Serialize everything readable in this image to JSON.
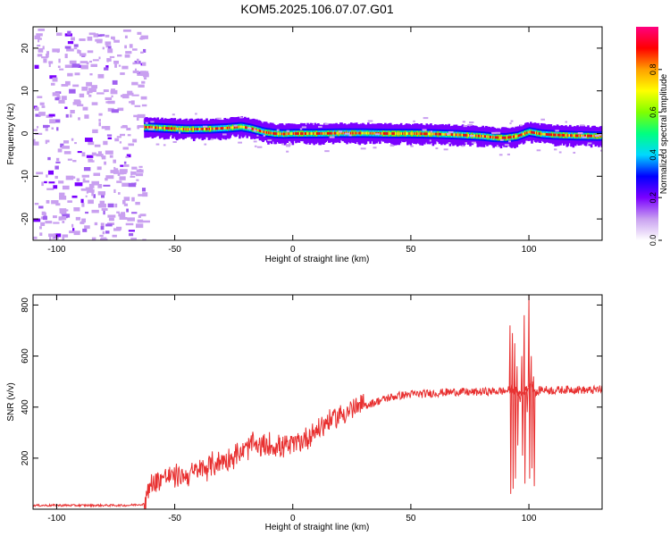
{
  "figure_title": "KOM5.2025.106.07.07.G01",
  "chart_data": [
    {
      "type": "heatmap",
      "xlabel": "Height of straight line (km)",
      "ylabel": "Frequency (Hz)",
      "xlim": [
        -110,
        131
      ],
      "ylim": [
        -25,
        25
      ],
      "x_ticks": [
        -100,
        -50,
        0,
        50,
        100
      ],
      "y_ticks": [
        -20,
        -10,
        0,
        10,
        20
      ],
      "colorbar": {
        "label": "Normalized spectral amplitude",
        "range": [
          0,
          1
        ],
        "ticks": [
          "0.0",
          "0.2",
          "0.4",
          "0.6",
          "0.8"
        ],
        "colors": [
          "#ffffff",
          "#c9a0f0",
          "#7a00ff",
          "#0000ff",
          "#00d8ff",
          "#00ff80",
          "#80ff00",
          "#ffff00",
          "#ffa000",
          "#ff0000",
          "#ff0080"
        ]
      },
      "noise_region_x": [
        -110,
        -63
      ],
      "signal_center_trace": {
        "x": [
          -63,
          -55,
          -45,
          -35,
          -28,
          -22,
          -18,
          -12,
          -8,
          -4,
          0,
          10,
          20,
          30,
          40,
          50,
          60,
          70,
          80,
          85,
          90,
          95,
          100,
          105,
          110,
          120,
          131
        ],
        "freq": [
          1.5,
          1.3,
          1.0,
          1.1,
          1.3,
          1.6,
          1.2,
          0.3,
          0.0,
          -0.1,
          0.0,
          0.0,
          0.1,
          0.1,
          0.0,
          0.0,
          -0.1,
          -0.3,
          -0.6,
          -0.9,
          -1.0,
          -0.6,
          0.4,
          -0.1,
          -0.3,
          -0.5,
          -0.6
        ]
      }
    },
    {
      "type": "line",
      "xlabel": "Height of straight line (km)",
      "ylabel": "SNR (v/v)",
      "xlim": [
        -110,
        131
      ],
      "ylim": [
        0,
        840
      ],
      "x_ticks": [
        -100,
        -50,
        0,
        50,
        100
      ],
      "y_ticks": [
        200,
        400,
        600,
        800
      ],
      "series_color": "#e83030",
      "series": [
        {
          "x": [
            -110,
            -100,
            -90,
            -80,
            -70,
            -63,
            -60,
            -55,
            -50,
            -45,
            -40,
            -35,
            -30,
            -25,
            -20,
            -17,
            -15,
            -10,
            -5,
            0,
            5,
            10,
            15,
            20,
            25,
            30,
            35,
            40,
            45,
            50,
            55,
            60,
            65,
            70,
            75,
            80,
            85,
            90,
            93,
            95,
            97,
            100,
            101,
            102,
            103,
            105,
            110,
            115,
            120,
            125,
            131
          ],
          "values": [
            15,
            15,
            15,
            15,
            15,
            20,
            100,
            125,
            130,
            130,
            150,
            170,
            190,
            205,
            230,
            260,
            240,
            250,
            245,
            250,
            275,
            310,
            345,
            370,
            390,
            405,
            420,
            435,
            445,
            450,
            452,
            455,
            458,
            460,
            458,
            460,
            462,
            463,
            470,
            460,
            450,
            480,
            500,
            470,
            450,
            470,
            465,
            468,
            470,
            465,
            470
          ],
          "spikes_x": [
            92,
            93,
            94,
            95,
            96,
            97,
            98,
            99,
            100,
            101,
            102
          ],
          "spikes_hi": [
            720,
            690,
            650,
            560,
            440,
            600,
            760,
            470,
            840,
            600,
            520
          ],
          "spikes_lo": [
            60,
            80,
            120,
            250,
            420,
            210,
            100,
            380,
            120,
            160,
            90
          ]
        }
      ]
    }
  ]
}
